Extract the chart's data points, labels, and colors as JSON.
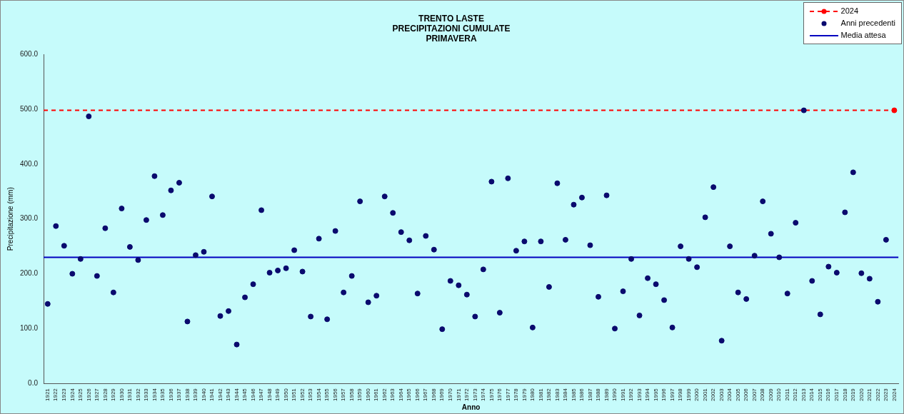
{
  "chart_data": {
    "type": "scatter",
    "title": "TRENTO LASTE\nPRECIPITAZIONI CUMULATE\nPRIMAVERA",
    "xlabel": "Anno",
    "ylabel": "Precipitazione (mm)",
    "categories": [
      "1921",
      "1922",
      "1923",
      "1924",
      "1925",
      "1926",
      "1927",
      "1928",
      "1929",
      "1930",
      "1931",
      "1932",
      "1933",
      "1934",
      "1935",
      "1936",
      "1937",
      "1938",
      "1939",
      "1940",
      "1941",
      "1942",
      "1943",
      "1944",
      "1945",
      "1946",
      "1947",
      "1948",
      "1949",
      "1950",
      "1951",
      "1952",
      "1953",
      "1954",
      "1955",
      "1956",
      "1957",
      "1958",
      "1959",
      "1960",
      "1961",
      "1962",
      "1963",
      "1964",
      "1965",
      "1966",
      "1967",
      "1968",
      "1969",
      "1970",
      "1971",
      "1972",
      "1973",
      "1974",
      "1975",
      "1976",
      "1977",
      "1978",
      "1979",
      "1980",
      "1981",
      "1982",
      "1983",
      "1984",
      "1985",
      "1986",
      "1987",
      "1988",
      "1989",
      "1990",
      "1991",
      "1992",
      "1993",
      "1994",
      "1995",
      "1996",
      "1997",
      "1998",
      "1999",
      "2000",
      "2001",
      "2002",
      "2003",
      "2004",
      "2005",
      "2006",
      "2007",
      "2008",
      "2009",
      "2010",
      "2011",
      "2012",
      "2013",
      "2014",
      "2015",
      "2016",
      "2017",
      "2018",
      "2019",
      "2020",
      "2021",
      "2022",
      "2023",
      "2024"
    ],
    "series": [
      {
        "name": "2024",
        "color": "#ff0000",
        "line_style": "dashed",
        "values": [
          null,
          null,
          null,
          null,
          null,
          null,
          null,
          null,
          null,
          null,
          null,
          null,
          null,
          null,
          null,
          null,
          null,
          null,
          null,
          null,
          null,
          null,
          null,
          null,
          null,
          null,
          null,
          null,
          null,
          null,
          null,
          null,
          null,
          null,
          null,
          null,
          null,
          null,
          null,
          null,
          null,
          null,
          null,
          null,
          null,
          null,
          null,
          null,
          null,
          null,
          null,
          null,
          null,
          null,
          null,
          null,
          null,
          null,
          null,
          null,
          null,
          null,
          null,
          null,
          null,
          null,
          null,
          null,
          null,
          null,
          null,
          null,
          null,
          null,
          null,
          null,
          null,
          null,
          null,
          null,
          null,
          null,
          null,
          null,
          null,
          null,
          null,
          null,
          null,
          null,
          null,
          null,
          null,
          null,
          null,
          null,
          null,
          null,
          null,
          null,
          null,
          null,
          null,
          498
        ]
      },
      {
        "name": "Anni precedenti",
        "color": "#0a0a6e",
        "values": [
          145,
          287,
          251,
          200,
          227,
          487,
          196,
          283,
          166,
          319,
          249,
          225,
          298,
          378,
          307,
          352,
          366,
          113,
          234,
          240,
          341,
          123,
          132,
          71,
          157,
          181,
          316,
          202,
          206,
          210,
          243,
          204,
          122,
          264,
          117,
          278,
          166,
          196,
          332,
          148,
          160,
          341,
          311,
          276,
          261,
          164,
          269,
          244,
          99,
          187,
          179,
          162,
          122,
          208,
          368,
          129,
          374,
          242,
          259,
          102,
          259,
          176,
          365,
          262,
          326,
          339,
          252,
          158,
          343,
          100,
          168,
          227,
          124,
          192,
          181,
          152,
          102,
          250,
          227,
          212,
          303,
          358,
          78,
          250,
          166,
          154,
          233,
          332,
          273,
          230,
          164,
          293,
          498,
          187,
          126,
          213,
          202,
          312,
          385,
          201,
          191,
          149,
          262,
          null
        ]
      }
    ],
    "ref_lines": [
      {
        "axis": "y",
        "value": 498,
        "color": "#ff0000",
        "line_style": "dashed"
      },
      {
        "axis": "y",
        "value": 230,
        "label": "Media attesa",
        "color": "#0000c0",
        "line_style": "solid"
      }
    ],
    "ylim": [
      0,
      600
    ],
    "yticks": [
      {
        "value": 0,
        "label": "0.0"
      },
      {
        "value": 100,
        "label": "100.0"
      },
      {
        "value": 200,
        "label": "200.0"
      },
      {
        "value": 300,
        "label": "300.0"
      },
      {
        "value": 400,
        "label": "400.0"
      },
      {
        "value": 500,
        "label": "500.0"
      },
      {
        "value": 600,
        "label": "600.0"
      }
    ],
    "grid": false,
    "legend": "top right",
    "marker": "circle"
  }
}
